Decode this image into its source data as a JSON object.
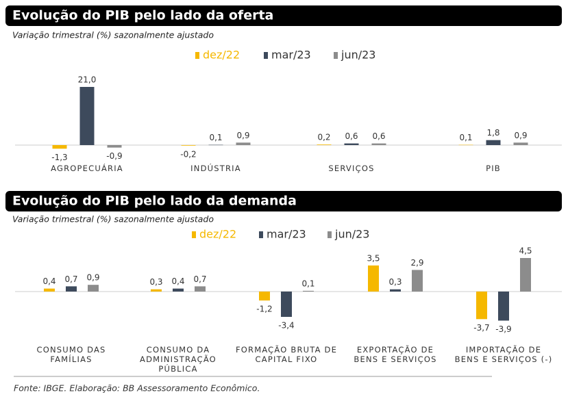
{
  "chart_data": [
    {
      "type": "bar",
      "title": "Evolução do PIB pelo lado da oferta",
      "subtitle": "Variação trimestral (%) sazonalmente ajustado",
      "categories": [
        "AGROPECUÁRIA",
        "INDÚSTRIA",
        "SERVIÇOS",
        "PIB"
      ],
      "series": [
        {
          "name": "dez/22",
          "color": "#f5b800",
          "values": [
            -1.3,
            -0.2,
            0.2,
            0.1
          ],
          "value_labels": [
            "-1,3",
            "-0,2",
            "0,2",
            "0,1"
          ]
        },
        {
          "name": "mar/23",
          "color": "#3d4a5c",
          "values": [
            21.0,
            0.1,
            0.6,
            1.8
          ],
          "value_labels": [
            "21,0",
            "0,1",
            "0,6",
            "1,8"
          ]
        },
        {
          "name": "jun/23",
          "color": "#8c8c8c",
          "values": [
            -0.9,
            0.9,
            0.6,
            0.9
          ],
          "value_labels": [
            "-0,9",
            "0,9",
            "0,6",
            "0,9"
          ]
        }
      ]
    },
    {
      "type": "bar",
      "title": "Evolução do PIB pelo lado da demanda",
      "subtitle": "Variação trimestral (%) sazonalmente ajustado",
      "categories": [
        "CONSUMO DAS\nFAMÍLIAS",
        "CONSUMO DA\nADMINISTRAÇÃO\nPÚBLICA",
        "FORMAÇÃO BRUTA DE\nCAPITAL FIXO",
        "EXPORTAÇÃO DE\nBENS E SERVIÇOS",
        "IMPORTAÇÃO DE\nBENS E SERVIÇOS (-)"
      ],
      "series": [
        {
          "name": "dez/22",
          "color": "#f5b800",
          "values": [
            0.4,
            0.3,
            -1.2,
            3.5,
            -3.7
          ],
          "value_labels": [
            "0,4",
            "0,3",
            "-1,2",
            "3,5",
            "-3,7"
          ]
        },
        {
          "name": "mar/23",
          "color": "#3d4a5c",
          "values": [
            0.7,
            0.4,
            -3.4,
            0.3,
            -3.9
          ],
          "value_labels": [
            "0,7",
            "0,4",
            "-3,4",
            "0,3",
            "-3,9"
          ]
        },
        {
          "name": "jun/23",
          "color": "#8c8c8c",
          "values": [
            0.9,
            0.7,
            0.1,
            2.9,
            4.5
          ],
          "value_labels": [
            "0,9",
            "0,7",
            "0,1",
            "2,9",
            "4,5"
          ]
        }
      ]
    }
  ],
  "source": "Fonte: IBGE. Elaboração: BB Assessoramento Econômico."
}
